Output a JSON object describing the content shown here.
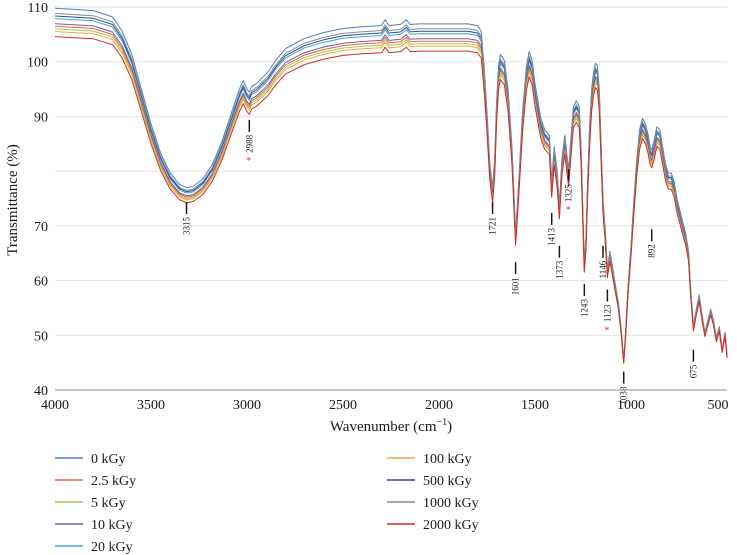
{
  "chart_data": {
    "type": "line",
    "title": "",
    "xlabel": "Wavenumber (cm",
    "xlabel_sup": "−1",
    "xlabel_close": ")",
    "ylabel": "Transmittance (%)",
    "xlim": [
      4000,
      500
    ],
    "ylim": [
      40,
      110
    ],
    "x_ticks": [
      4000,
      3500,
      3000,
      2500,
      2000,
      1500,
      1000,
      500
    ],
    "y_ticks": [
      40,
      50,
      60,
      70,
      90,
      100,
      110
    ],
    "grid": "horizontal",
    "legend_position": "bottom",
    "series": [
      {
        "name": "0 kGy",
        "color": "#4a7fc1",
        "offset": 4.0
      },
      {
        "name": "2.5 kGy",
        "color": "#e8604c",
        "offset": 0.5
      },
      {
        "name": "5 kGy",
        "color": "#9ccc4a",
        "offset": 0.0
      },
      {
        "name": "10 kGy",
        "color": "#7b5aa6",
        "offset": 1.0
      },
      {
        "name": "20 kGy",
        "color": "#3aa8d8",
        "offset": 2.0
      },
      {
        "name": "100 kGy",
        "color": "#f5a640",
        "offset": -0.5
      },
      {
        "name": "500 kGy",
        "color": "#2e4a8c",
        "offset": 2.5
      },
      {
        "name": "1000 kGy",
        "color": "#8a8a8a",
        "offset": 3.0
      },
      {
        "name": "2000 kGy",
        "color": "#d42a20",
        "offset": -1.5
      }
    ],
    "annotations": [
      {
        "label": "3315",
        "x": 3315,
        "y": 74,
        "marked": false
      },
      {
        "label": "2988",
        "x": 2988,
        "y": 89,
        "marked": true
      },
      {
        "label": "1721",
        "x": 1721,
        "y": 74,
        "marked": false
      },
      {
        "label": "1601",
        "x": 1601,
        "y": 63,
        "marked": false
      },
      {
        "label": "1413",
        "x": 1413,
        "y": 72,
        "marked": false
      },
      {
        "label": "1373",
        "x": 1373,
        "y": 66,
        "marked": false
      },
      {
        "label": "1325",
        "x": 1325,
        "y": 80,
        "marked": true
      },
      {
        "label": "1243",
        "x": 1243,
        "y": 59,
        "marked": false
      },
      {
        "label": "1146",
        "x": 1146,
        "y": 66,
        "marked": false
      },
      {
        "label": "1123",
        "x": 1123,
        "y": 58,
        "marked": true
      },
      {
        "label": "1038",
        "x": 1038,
        "y": 43,
        "marked": false
      },
      {
        "label": "892",
        "x": 892,
        "y": 69,
        "marked": false
      },
      {
        "label": "675",
        "x": 675,
        "y": 47,
        "marked": false
      }
    ]
  }
}
